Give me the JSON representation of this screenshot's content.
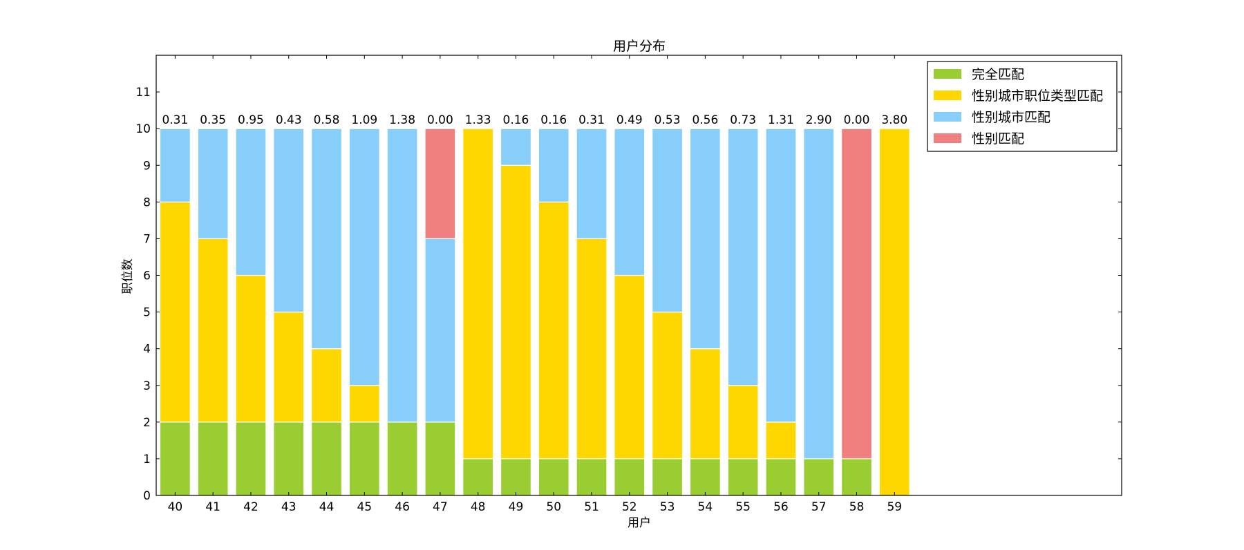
{
  "chart_data": {
    "type": "bar",
    "stacked": true,
    "title": "用户分布",
    "xlabel": "用户",
    "ylabel": "职位数",
    "ylim": [
      0,
      12
    ],
    "yticks": [
      0,
      1,
      2,
      3,
      4,
      5,
      6,
      7,
      8,
      9,
      10,
      11
    ],
    "categories": [
      "40",
      "41",
      "42",
      "43",
      "44",
      "45",
      "46",
      "47",
      "48",
      "49",
      "50",
      "51",
      "52",
      "53",
      "54",
      "55",
      "56",
      "57",
      "58",
      "59"
    ],
    "xlim": [
      39.5,
      65
    ],
    "legend_position": "top-right",
    "grid": false,
    "series": [
      {
        "name": "完全匹配",
        "color": "#9acd32",
        "values": [
          2,
          2,
          2,
          2,
          2,
          2,
          2,
          2,
          1,
          1,
          1,
          1,
          1,
          1,
          1,
          1,
          1,
          1,
          1,
          0
        ]
      },
      {
        "name": "性别城市职位类型匹配",
        "color": "#ffd700",
        "values": [
          6,
          5,
          4,
          3,
          2,
          1,
          0,
          0,
          9,
          8,
          7,
          6,
          5,
          4,
          3,
          2,
          1,
          0,
          0,
          10
        ]
      },
      {
        "name": "性别城市匹配",
        "color": "#87cefa",
        "values": [
          2,
          3,
          4,
          5,
          6,
          7,
          8,
          5,
          0,
          1,
          2,
          3,
          4,
          5,
          6,
          7,
          8,
          9,
          0,
          0
        ]
      },
      {
        "name": "性别匹配",
        "color": "#f08080",
        "values": [
          0,
          0,
          0,
          0,
          0,
          0,
          0,
          3,
          0,
          0,
          0,
          0,
          0,
          0,
          0,
          0,
          0,
          0,
          9,
          0
        ]
      }
    ],
    "annotations": [
      "0.31",
      "0.35",
      "0.95",
      "0.43",
      "0.58",
      "1.09",
      "1.38",
      "0.00",
      "1.33",
      "0.16",
      "0.16",
      "0.31",
      "0.49",
      "0.53",
      "0.56",
      "0.73",
      "1.31",
      "2.90",
      "0.00",
      "3.80"
    ]
  }
}
